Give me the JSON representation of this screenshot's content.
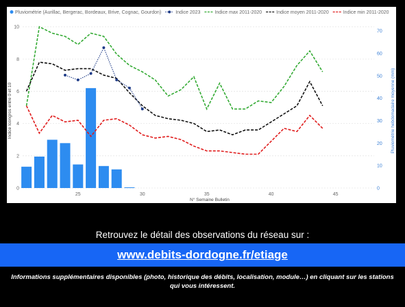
{
  "chart_data": {
    "type": "bar+line",
    "xlabel": "N° Semaine Bulletin",
    "ylabel_left": "Indice Icongros entre 0 et 10",
    "ylabel_right": "Pluviométrie hebdomadaire moyenne (mm)",
    "x_ticks": [
      25,
      30,
      35,
      40,
      45
    ],
    "y_left_ticks": [
      0,
      2,
      4,
      6,
      8,
      10
    ],
    "y_right_ticks": [
      0,
      10,
      20,
      30,
      40,
      50,
      60,
      70
    ],
    "x_range": [
      20.7,
      48
    ],
    "y_left_range": [
      0,
      10.3
    ],
    "y_right_range": [
      0,
      74
    ],
    "legend": [
      {
        "label": "Pluviométrie (Aurillac, Bergerac, Bordeaux, Brive, Cognac, Gourdon)",
        "color": "#2d8cf0",
        "kind": "dot"
      },
      {
        "label": "Indice 2023",
        "color": "#1f3c88",
        "kind": "dotline"
      },
      {
        "label": "Indice max 2011-2020",
        "color": "#33aa33",
        "kind": "dash"
      },
      {
        "label": "Indice moyen 2011-2020",
        "color": "#111111",
        "kind": "dash"
      },
      {
        "label": "Indice min 2011-2020",
        "color": "#e01b1b",
        "kind": "dash"
      }
    ],
    "rain_bars": {
      "name": "Pluviométrie (Aurillac, Bergerac, Bordeaux, Brive, Cognac, Gourdon)",
      "axis": "right",
      "color": "#2d8cf0",
      "x": [
        21,
        22,
        23,
        24,
        25,
        26,
        27,
        28,
        29
      ],
      "values": [
        9.5,
        14,
        21.5,
        20,
        10.5,
        44.5,
        9.8,
        8.3,
        0.3
      ]
    },
    "series": [
      {
        "name": "Indice max 2011-2020",
        "axis": "left",
        "color": "#33aa33",
        "style": "dashed",
        "x": [
          21,
          22,
          23,
          24,
          25,
          26,
          27,
          28,
          29,
          30,
          31,
          32,
          33,
          34,
          35,
          36,
          37,
          38,
          39,
          40,
          41,
          42,
          43,
          44
        ],
        "values": [
          5.1,
          10,
          9.6,
          9.4,
          8.9,
          9.6,
          9.4,
          8.3,
          7.6,
          7.2,
          6.7,
          5.7,
          6.1,
          6.9,
          4.9,
          6.5,
          4.9,
          4.9,
          5.4,
          5.3,
          6.3,
          7.6,
          8.5,
          7.2
        ]
      },
      {
        "name": "Indice moyen 2011-2020",
        "axis": "left",
        "color": "#111111",
        "style": "dashed",
        "x": [
          21,
          22,
          23,
          24,
          25,
          26,
          27,
          28,
          29,
          30,
          31,
          32,
          33,
          34,
          35,
          36,
          37,
          38,
          39,
          40,
          41,
          42,
          43,
          44
        ],
        "values": [
          6.0,
          7.8,
          7.7,
          7.3,
          7.4,
          7.4,
          7.0,
          6.8,
          5.9,
          5.1,
          4.5,
          4.3,
          4.2,
          4.0,
          3.5,
          3.6,
          3.3,
          3.6,
          3.6,
          4.1,
          4.6,
          5.1,
          6.6,
          5.1
        ]
      },
      {
        "name": "Indice min 2011-2020",
        "axis": "left",
        "color": "#e01b1b",
        "style": "dashed",
        "x": [
          21,
          22,
          23,
          24,
          25,
          26,
          27,
          28,
          29,
          30,
          31,
          32,
          33,
          34,
          35,
          36,
          37,
          38,
          39,
          40,
          41,
          42,
          43,
          44
        ],
        "values": [
          5.1,
          3.4,
          4.5,
          4.1,
          4.2,
          3.2,
          4.2,
          4.3,
          3.9,
          3.3,
          3.1,
          3.2,
          3.0,
          2.6,
          2.3,
          2.3,
          2.2,
          2.1,
          2.1,
          2.9,
          3.7,
          3.5,
          4.5,
          3.7
        ]
      },
      {
        "name": "Indice 2023",
        "axis": "left",
        "color": "#1f3c88",
        "style": "dotted-markers",
        "x": [
          24,
          25,
          26,
          27,
          28,
          29,
          30
        ],
        "values": [
          7.0,
          6.7,
          7.1,
          8.7,
          6.7,
          6.2,
          4.9
        ]
      }
    ]
  },
  "info": {
    "text": "Retrouvez le détail des observations du réseau sur :",
    "link": "www.debits-dordogne.fr/etiage",
    "note": "Informations supplémentaires disponibles (photo, historique des débits, localisation, module…) en cliquant sur les stations qui vous intéressent."
  }
}
